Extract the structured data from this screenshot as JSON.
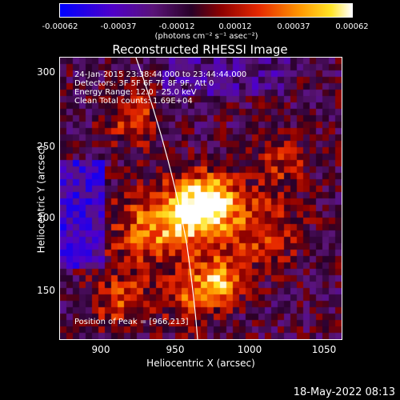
{
  "colorbar": {
    "ticks": [
      "-0.00062",
      "-0.00037",
      "-0.00012",
      "0.00012",
      "0.00037",
      "0.00062"
    ],
    "unit_label": "(photons cm⁻² s⁻¹ asec⁻²)"
  },
  "plot": {
    "title": "Reconstructed RHESSI Image",
    "annotation": {
      "time_range": "24-Jan-2015 23:38:44.000 to 23:44:44.000",
      "detectors": "Detectors: 3F 5F 6F 7F 8F 9F, Att 0",
      "energy": "Energy Range: 12.0 - 25.0 keV",
      "clean": "Clean     Total counts: 1.69E+04",
      "peak": "Position of Peak = [966,213]"
    },
    "x_axis": {
      "label": "Heliocentric X (arcsec)",
      "ticks": [
        "900",
        "950",
        "1000",
        "1050"
      ],
      "range": [
        870,
        1060
      ]
    },
    "y_axis": {
      "label": "Heliocentric Y (arcsec)",
      "ticks": [
        "150",
        "200",
        "250",
        "300"
      ],
      "range": [
        115,
        305
      ]
    }
  },
  "footer": {
    "timestamp": "18-May-2022 08:13"
  },
  "colors": {
    "background": "#000000",
    "foreground": "#ffffff"
  }
}
